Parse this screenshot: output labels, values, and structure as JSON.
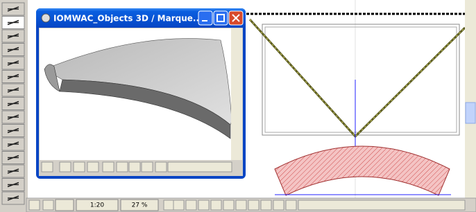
{
  "window": {
    "title": "IOMWAC_Objects 3D / Marque..."
  },
  "status_bar": {
    "scale": "1:20",
    "zoom": "27 %"
  }
}
